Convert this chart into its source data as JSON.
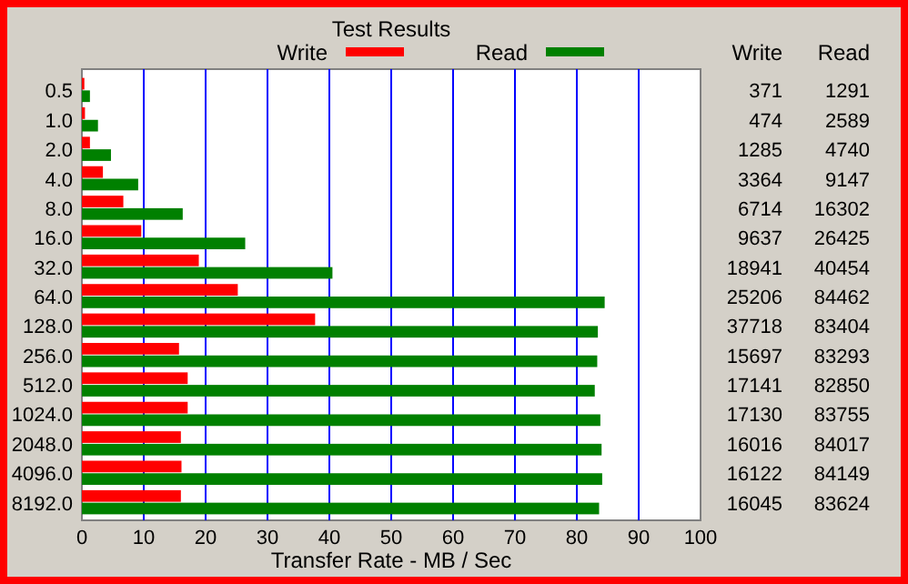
{
  "chart_data": {
    "type": "bar",
    "orientation": "horizontal",
    "title": "Test Results",
    "xlabel": "Transfer Rate - MB / Sec",
    "categories": [
      "0.5",
      "1.0",
      "2.0",
      "4.0",
      "8.0",
      "16.0",
      "32.0",
      "64.0",
      "128.0",
      "256.0",
      "512.0",
      "1024.0",
      "2048.0",
      "4096.0",
      "8192.0"
    ],
    "series": [
      {
        "name": "Write",
        "color": "#ff0000",
        "values": [
          0.4,
          0.5,
          1.3,
          3.4,
          6.7,
          9.6,
          18.9,
          25.2,
          37.7,
          15.7,
          17.1,
          17.1,
          16.0,
          16.1,
          16.0
        ]
      },
      {
        "name": "Read",
        "color": "#008000",
        "values": [
          1.3,
          2.6,
          4.7,
          9.1,
          16.3,
          26.4,
          40.5,
          84.5,
          83.4,
          83.3,
          82.9,
          83.8,
          84.0,
          84.1,
          83.6
        ]
      }
    ],
    "annotations": [
      "371",
      "474",
      "1285",
      "3364",
      "6714",
      "9637",
      "18941",
      "25206",
      "37718",
      "15697",
      "17141",
      "17130",
      "16016",
      "16122",
      "16045",
      "1291",
      "2589",
      "4740",
      "9147",
      "16302",
      "26425",
      "40454",
      "84462",
      "83404",
      "83293",
      "82850",
      "83755",
      "84017",
      "84149",
      "83624"
    ],
    "xlim": [
      0,
      100
    ],
    "xticks": [
      0,
      10,
      20,
      30,
      40,
      50,
      60,
      70,
      80,
      90,
      100
    ],
    "grid": "x",
    "legend": "top"
  }
}
